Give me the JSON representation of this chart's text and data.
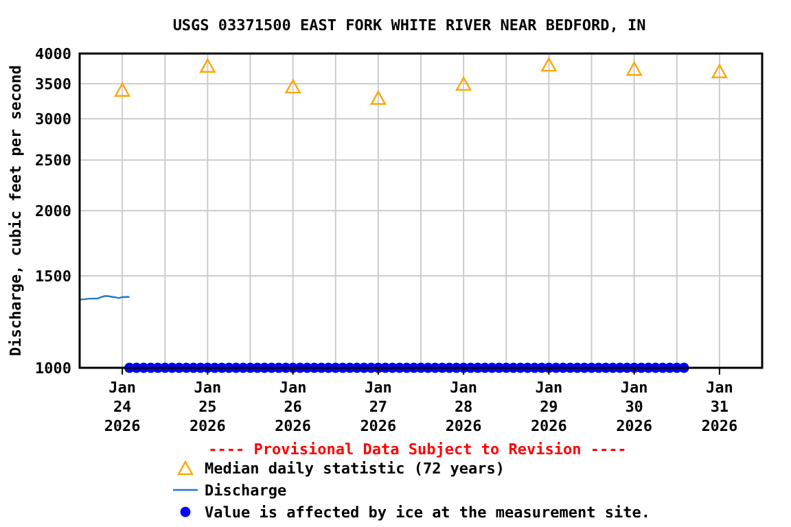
{
  "chart_data": {
    "type": "scatter",
    "title": "USGS 03371500 EAST FORK WHITE RIVER NEAR BEDFORD, IN",
    "ylabel": "Discharge, cubic feet per second",
    "annotations": [
      "---- Provisional Data Subject to Revision ----"
    ],
    "log": "y",
    "grid": true,
    "legend": "bottom",
    "xlim": [
      "2026-01-24T00:00",
      "2026-02-01T00:00"
    ],
    "xticks": [
      {
        "value": "2026-01-24T12:00",
        "label": "Jan\n24\n2026"
      },
      {
        "value": "2026-01-25T00:00",
        "label": null
      },
      {
        "value": "2026-01-25T12:00",
        "label": "Jan\n25\n2026"
      },
      {
        "value": "2026-01-26T00:00",
        "label": null
      },
      {
        "value": "2026-01-26T12:00",
        "label": "Jan\n26\n2026"
      },
      {
        "value": "2026-01-27T00:00",
        "label": null
      },
      {
        "value": "2026-01-27T12:00",
        "label": "Jan\n27\n2026"
      },
      {
        "value": "2026-01-28T00:00",
        "label": null
      },
      {
        "value": "2026-01-28T12:00",
        "label": "Jan\n28\n2026"
      },
      {
        "value": "2026-01-29T00:00",
        "label": null
      },
      {
        "value": "2026-01-29T12:00",
        "label": "Jan\n29\n2026"
      },
      {
        "value": "2026-01-30T00:00",
        "label": null
      },
      {
        "value": "2026-01-30T12:00",
        "label": "Jan\n30\n2026"
      },
      {
        "value": "2026-01-31T00:00",
        "label": null
      },
      {
        "value": "2026-01-31T12:00",
        "label": "Jan\n31\n2026"
      }
    ],
    "ylim": [
      1000,
      4000
    ],
    "yticks": [
      1000,
      1500,
      2000,
      2500,
      3000,
      3500,
      4000
    ],
    "series": [
      {
        "name": "Median daily statistic (72 years)",
        "marker": "triangle",
        "color": "#ffa500",
        "x": [
          "2026-01-24T12:00",
          "2026-01-25T12:00",
          "2026-01-26T12:00",
          "2026-01-27T12:00",
          "2026-01-28T12:00",
          "2026-01-29T12:00",
          "2026-01-30T12:00",
          "2026-01-31T12:00"
        ],
        "values": [
          3410,
          3790,
          3460,
          3290,
          3500,
          3810,
          3740,
          3700
        ]
      },
      {
        "name": "Discharge",
        "type": "line",
        "marker": "none",
        "color": "#1f77d4",
        "x": [
          "2026-01-24T00:00",
          "2026-01-24T01:00",
          "2026-01-24T02:00",
          "2026-01-24T03:00",
          "2026-01-24T04:00",
          "2026-01-24T05:00",
          "2026-01-24T06:00",
          "2026-01-24T07:00",
          "2026-01-24T08:00",
          "2026-01-24T09:00",
          "2026-01-24T10:00",
          "2026-01-24T11:00",
          "2026-01-24T12:00",
          "2026-01-24T13:00",
          "2026-01-24T14:00"
        ],
        "values": [
          1352,
          1352,
          1355,
          1357,
          1357,
          1357,
          1365,
          1372,
          1372,
          1368,
          1365,
          1360,
          1366,
          1367,
          1367
        ]
      },
      {
        "name": "Value is affected by ice at the measurement site.",
        "marker": "circle",
        "color": "#0000ff",
        "x": [
          "2026-01-24T14:00",
          "2026-01-24T16:00",
          "2026-01-24T18:00",
          "2026-01-24T20:00",
          "2026-01-24T22:00",
          "2026-01-25T00:00",
          "2026-01-25T02:00",
          "2026-01-25T04:00",
          "2026-01-25T06:00",
          "2026-01-25T08:00",
          "2026-01-25T10:00",
          "2026-01-25T12:00",
          "2026-01-25T14:00",
          "2026-01-25T16:00",
          "2026-01-25T18:00",
          "2026-01-25T20:00",
          "2026-01-25T22:00",
          "2026-01-26T00:00",
          "2026-01-26T02:00",
          "2026-01-26T04:00",
          "2026-01-26T06:00",
          "2026-01-26T08:00",
          "2026-01-26T10:00",
          "2026-01-26T12:00",
          "2026-01-26T14:00",
          "2026-01-26T16:00",
          "2026-01-26T18:00",
          "2026-01-26T20:00",
          "2026-01-26T22:00",
          "2026-01-27T00:00",
          "2026-01-27T02:00",
          "2026-01-27T04:00",
          "2026-01-27T06:00",
          "2026-01-27T08:00",
          "2026-01-27T10:00",
          "2026-01-27T12:00",
          "2026-01-27T14:00",
          "2026-01-27T16:00",
          "2026-01-27T18:00",
          "2026-01-27T20:00",
          "2026-01-27T22:00",
          "2026-01-28T00:00",
          "2026-01-28T02:00",
          "2026-01-28T04:00",
          "2026-01-28T06:00",
          "2026-01-28T08:00",
          "2026-01-28T10:00",
          "2026-01-28T12:00",
          "2026-01-28T14:00",
          "2026-01-28T16:00",
          "2026-01-28T18:00",
          "2026-01-28T20:00",
          "2026-01-28T22:00",
          "2026-01-29T00:00",
          "2026-01-29T02:00",
          "2026-01-29T04:00",
          "2026-01-29T06:00",
          "2026-01-29T08:00",
          "2026-01-29T10:00",
          "2026-01-29T12:00",
          "2026-01-29T14:00",
          "2026-01-29T16:00",
          "2026-01-29T18:00",
          "2026-01-29T20:00",
          "2026-01-29T22:00",
          "2026-01-30T00:00",
          "2026-01-30T02:00",
          "2026-01-30T04:00",
          "2026-01-30T06:00",
          "2026-01-30T08:00",
          "2026-01-30T10:00",
          "2026-01-30T12:00",
          "2026-01-30T14:00",
          "2026-01-30T16:00",
          "2026-01-30T18:00",
          "2026-01-30T20:00",
          "2026-01-30T22:00",
          "2026-01-31T00:00",
          "2026-01-31T02:00"
        ],
        "values": [
          1000,
          1000,
          1000,
          1000,
          1000,
          1000,
          1000,
          1000,
          1000,
          1000,
          1000,
          1000,
          1000,
          1000,
          1000,
          1000,
          1000,
          1000,
          1000,
          1000,
          1000,
          1000,
          1000,
          1000,
          1000,
          1000,
          1000,
          1000,
          1000,
          1000,
          1000,
          1000,
          1000,
          1000,
          1000,
          1000,
          1000,
          1000,
          1000,
          1000,
          1000,
          1000,
          1000,
          1000,
          1000,
          1000,
          1000,
          1000,
          1000,
          1000,
          1000,
          1000,
          1000,
          1000,
          1000,
          1000,
          1000,
          1000,
          1000,
          1000,
          1000,
          1000,
          1000,
          1000,
          1000,
          1000,
          1000,
          1000,
          1000,
          1000,
          1000,
          1000,
          1000,
          1000,
          1000,
          1000,
          1000,
          1000,
          1000
        ]
      }
    ]
  }
}
